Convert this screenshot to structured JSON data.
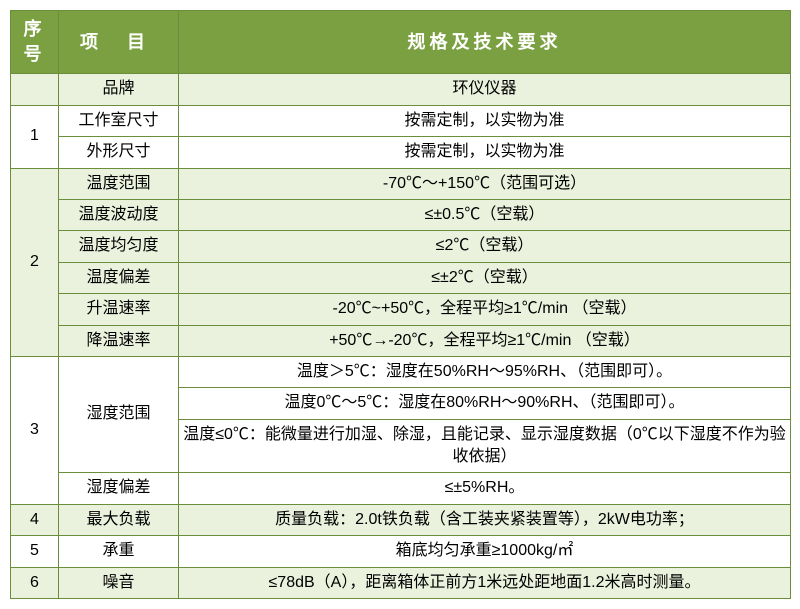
{
  "colors": {
    "header_bg": "#7ba041",
    "header_text": "#ffffff",
    "row_even_bg": "#eaf1dc",
    "row_odd_bg": "#ffffff",
    "border": "#6b8e3d"
  },
  "header": {
    "seq": "序号",
    "item": "项 目",
    "spec": "规格及技术要求"
  },
  "groups": [
    {
      "seq": "",
      "bg": "even",
      "rows": [
        {
          "item": "品牌",
          "spec": "环仪仪器"
        }
      ]
    },
    {
      "seq": "1",
      "bg": "odd",
      "rows": [
        {
          "item": "工作室尺寸",
          "spec": "按需定制，以实物为准"
        },
        {
          "item": "外形尺寸",
          "spec": "按需定制，以实物为准"
        }
      ]
    },
    {
      "seq": "2",
      "bg": "even",
      "rows": [
        {
          "item": "温度范围",
          "spec": "-70℃～+150℃（范围可选）"
        },
        {
          "item": "温度波动度",
          "spec": "≤±0.5℃（空载）"
        },
        {
          "item": "温度均匀度",
          "spec": "≤2℃（空载）"
        },
        {
          "item": "温度偏差",
          "spec": "≤±2℃（空载）"
        },
        {
          "item": "升温速率",
          "spec": "-20℃~+50℃，全程平均≥1℃/min （空载）"
        },
        {
          "item": "降温速率",
          "spec": "+50℃→-20℃，全程平均≥1℃/min （空载）"
        }
      ]
    },
    {
      "seq": "3",
      "bg": "odd",
      "rows": [
        {
          "item": "湿度范围",
          "item_rowspan": 3,
          "spec": "温度＞5℃：湿度在50%RH～95%RH、（范围即可）。"
        },
        {
          "spec": "温度0℃～5℃：湿度在80%RH～90%RH、（范围即可）。"
        },
        {
          "spec": "温度≤0℃：能微量进行加湿、除湿，且能记录、显示湿度数据（0℃以下湿度不作为验收依据）"
        },
        {
          "item": "湿度偏差",
          "spec": "≤±5%RH。"
        }
      ]
    },
    {
      "seq": "4",
      "bg": "even",
      "rows": [
        {
          "item": "最大负载",
          "spec": "质量负载：2.0t铁负载（含工装夹紧装置等），2kW电功率；"
        }
      ]
    },
    {
      "seq": "5",
      "bg": "odd",
      "rows": [
        {
          "item": "承重",
          "spec": "箱底均匀承重≥1000kg/㎡"
        }
      ]
    },
    {
      "seq": "6",
      "bg": "even",
      "rows": [
        {
          "item": "噪音",
          "spec": "≤78dB（A），距离箱体正前方1米远处距地面1.2米高时测量。"
        }
      ]
    }
  ]
}
